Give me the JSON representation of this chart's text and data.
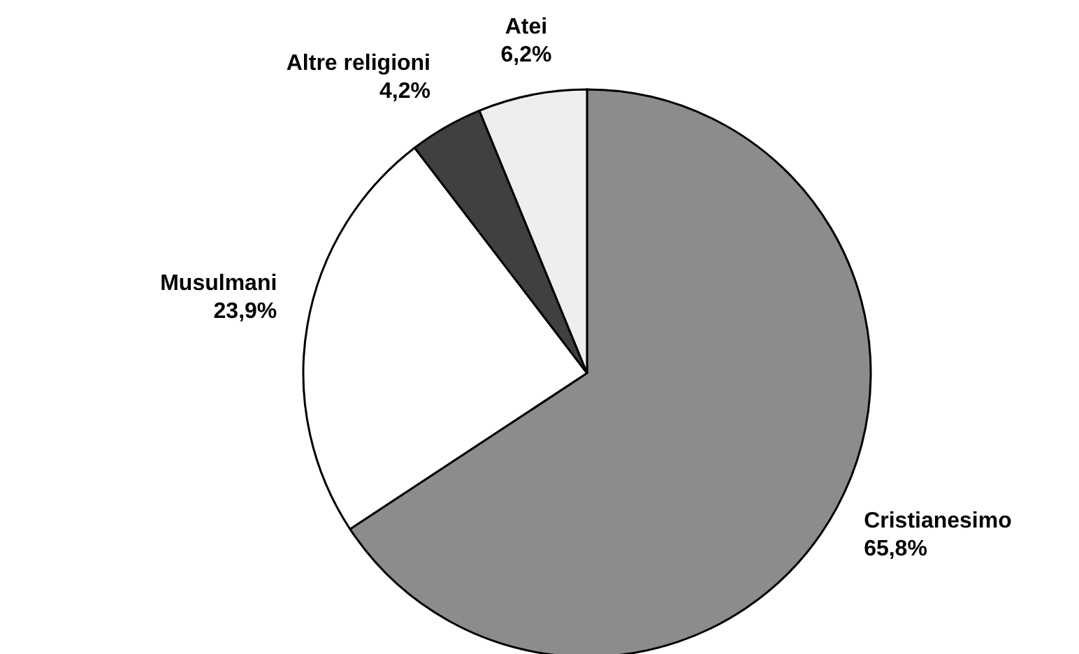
{
  "chart_data": {
    "type": "pie",
    "categories": [
      "Cristianesimo",
      "Musulmani",
      "Altre religioni",
      "Atei"
    ],
    "values": [
      65.8,
      23.9,
      4.2,
      6.2
    ],
    "value_labels": [
      "65,8%",
      "23,9%",
      "4,2%",
      "6,2%"
    ],
    "colors": [
      "#8c8c8c",
      "#ffffff",
      "#404040",
      "#eeeeee"
    ],
    "legend": false
  }
}
